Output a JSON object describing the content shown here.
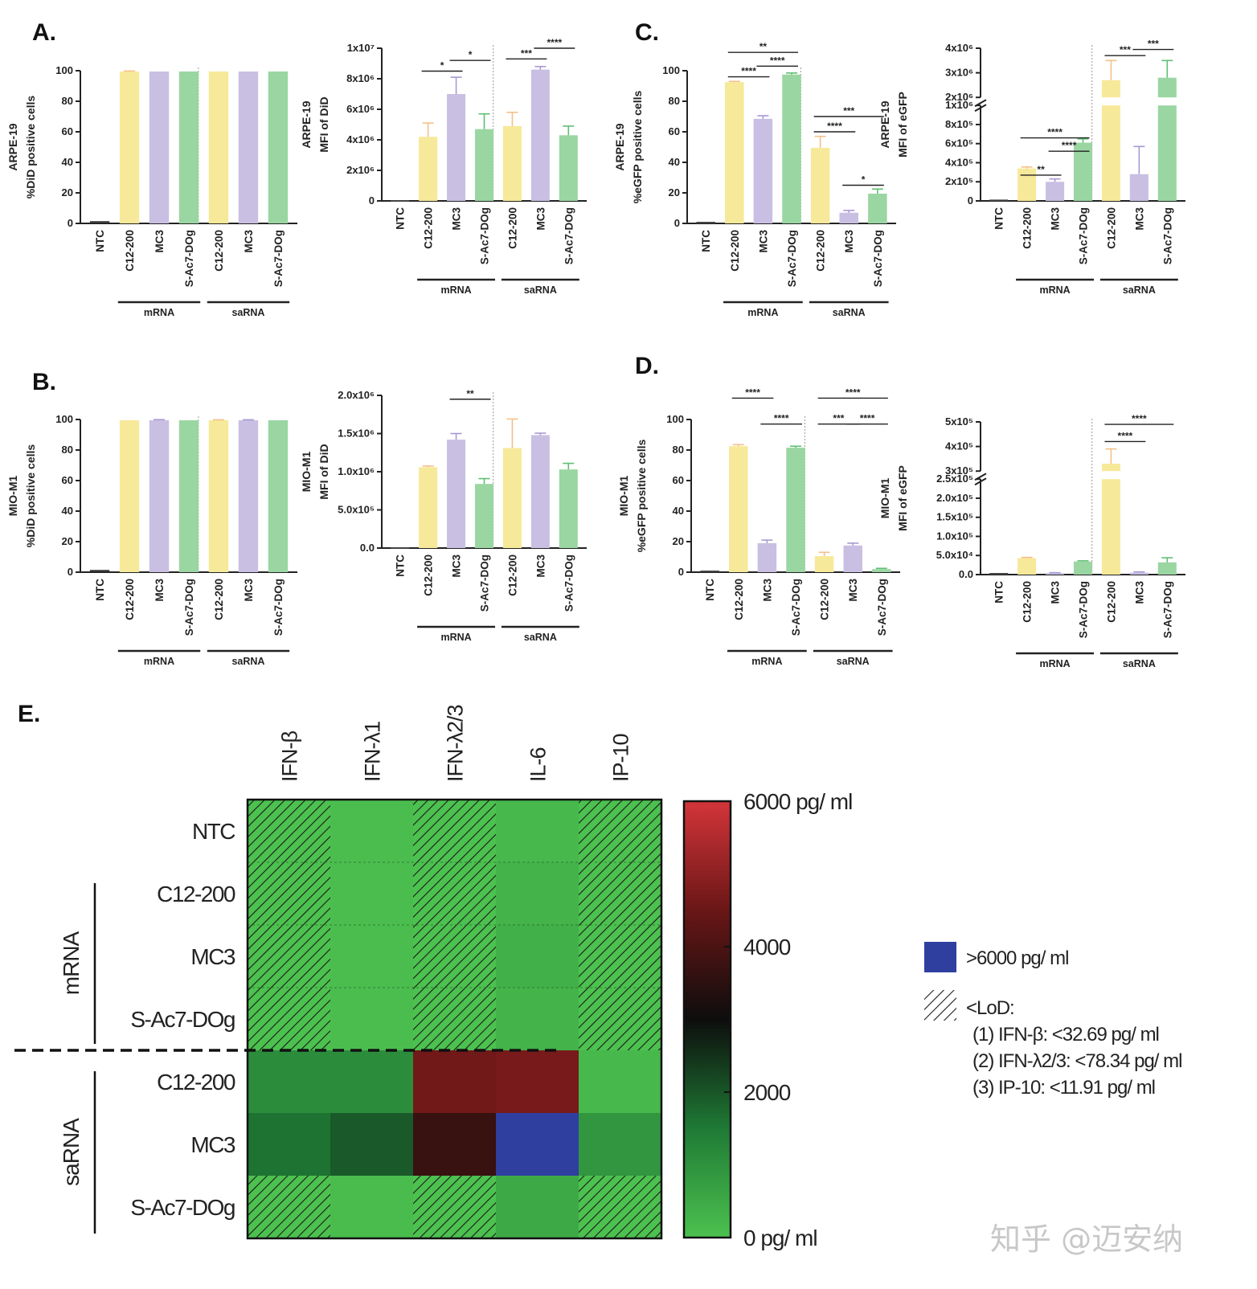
{
  "colors": {
    "C12-200": "#f7e99a",
    "MC3": "#c9bfe3",
    "S-Ac7-DOg": "#9ad6a2",
    "NTC": "#444444",
    "err_C12-200": "#f5c08a",
    "err_MC3": "#a899d4",
    "err_S-Ac7-DOg": "#5fbf72",
    "above_range": "#2f3fa0"
  },
  "watermark": "知乎 @迈安纳",
  "chart_data": [
    {
      "id": "A1",
      "letter": "A.",
      "type": "bar",
      "ylabel_lines": [
        "ARPE-19",
        "%DiD positive cells"
      ],
      "ylim": [
        0,
        100
      ],
      "yticks": [
        0,
        20,
        40,
        60,
        80,
        100
      ],
      "ytick_labels": [
        "0",
        "20",
        "40",
        "60",
        "80",
        "100"
      ],
      "categories": [
        "NTC",
        "C12-200",
        "MC3",
        "S-Ac7-DOg",
        "C12-200",
        "MC3",
        "S-Ac7-DOg"
      ],
      "groups": [
        {
          "label": "mRNA",
          "from": 1,
          "to": 3
        },
        {
          "label": "saRNA",
          "from": 4,
          "to": 6
        }
      ],
      "values": [
        1,
        99.5,
        99.5,
        99.5,
        99.5,
        99.5,
        99.5
      ],
      "errors": [
        0,
        0.3,
        0,
        0,
        0,
        0,
        0
      ],
      "sig": []
    },
    {
      "id": "A2",
      "type": "bar",
      "ylabel_lines": [
        "ARPE-19",
        "MFI of DiD"
      ],
      "ylim": [
        0,
        10000000
      ],
      "yticks": [
        0,
        2000000,
        4000000,
        6000000,
        8000000,
        10000000
      ],
      "ytick_labels": [
        "0",
        "2x10⁶",
        "4x10⁶",
        "6x10⁶",
        "8x10⁶",
        "1x10⁷"
      ],
      "categories": [
        "NTC",
        "C12-200",
        "MC3",
        "S-Ac7-DOg",
        "C12-200",
        "MC3",
        "S-Ac7-DOg"
      ],
      "groups": [
        {
          "label": "mRNA",
          "from": 1,
          "to": 3
        },
        {
          "label": "saRNA",
          "from": 4,
          "to": 6
        }
      ],
      "values": [
        0,
        4200000,
        7000000,
        4700000,
        4900000,
        8600000,
        4300000
      ],
      "errors": [
        0,
        900000,
        1100000,
        1000000,
        900000,
        200000,
        600000
      ],
      "sig": [
        {
          "a": 1,
          "b": 2,
          "label": "*",
          "y": 8500000
        },
        {
          "a": 2,
          "b": 3,
          "label": "*",
          "y": 9200000
        },
        {
          "a": 4,
          "b": 5,
          "label": "***",
          "y": 9300000
        },
        {
          "a": 5,
          "b": 6,
          "label": "****",
          "y": 10000000
        }
      ]
    },
    {
      "id": "B1",
      "letter": "B.",
      "type": "bar",
      "ylabel_lines": [
        "MIO-M1",
        "%DiD positive cells"
      ],
      "ylim": [
        0,
        100
      ],
      "yticks": [
        0,
        20,
        40,
        60,
        80,
        100
      ],
      "ytick_labels": [
        "0",
        "20",
        "40",
        "60",
        "80",
        "100"
      ],
      "categories": [
        "NTC",
        "C12-200",
        "MC3",
        "S-Ac7-DOg",
        "C12-200",
        "MC3",
        "S-Ac7-DOg"
      ],
      "groups": [
        {
          "label": "mRNA",
          "from": 1,
          "to": 3
        },
        {
          "label": "saRNA",
          "from": 4,
          "to": 6
        }
      ],
      "values": [
        1,
        99.5,
        99.5,
        99.5,
        99.5,
        99.5,
        99.5
      ],
      "errors": [
        0,
        0,
        0.4,
        0,
        0.3,
        0.3,
        0
      ],
      "sig": []
    },
    {
      "id": "B2",
      "type": "bar",
      "ylabel_lines": [
        "MIO-M1",
        "MFI of DiD"
      ],
      "ylim": [
        0,
        2000000
      ],
      "yticks": [
        0,
        500000,
        1000000,
        1500000,
        2000000
      ],
      "ytick_labels": [
        "0.0",
        "5.0x10⁵",
        "1.0x10⁶",
        "1.5x10⁶",
        "2.0x10⁶"
      ],
      "categories": [
        "NTC",
        "C12-200",
        "MC3",
        "S-Ac7-DOg",
        "C12-200",
        "MC3",
        "S-Ac7-DOg"
      ],
      "groups": [
        {
          "label": "mRNA",
          "from": 1,
          "to": 3
        },
        {
          "label": "saRNA",
          "from": 4,
          "to": 6
        }
      ],
      "values": [
        0,
        1060000,
        1420000,
        840000,
        1310000,
        1480000,
        1030000
      ],
      "errors": [
        0,
        15000,
        80000,
        70000,
        380000,
        25000,
        80000
      ],
      "sig": [
        {
          "a": 2,
          "b": 3,
          "label": "**",
          "y": 1950000
        }
      ]
    },
    {
      "id": "C1",
      "letter": "C.",
      "type": "bar",
      "ylabel_lines": [
        "ARPE-19",
        "%eGFP positive cells"
      ],
      "ylim": [
        0,
        100
      ],
      "yticks": [
        0,
        20,
        40,
        60,
        80,
        100
      ],
      "ytick_labels": [
        "0",
        "20",
        "40",
        "60",
        "80",
        "100"
      ],
      "categories": [
        "NTC",
        "C12-200",
        "MC3",
        "S-Ac7-DOg",
        "C12-200",
        "MC3",
        "S-Ac7-DOg"
      ],
      "groups": [
        {
          "label": "mRNA",
          "from": 1,
          "to": 3
        },
        {
          "label": "saRNA",
          "from": 4,
          "to": 6
        }
      ],
      "values": [
        0.5,
        92.5,
        68.5,
        97.5,
        49.5,
        7,
        19.5
      ],
      "errors": [
        0,
        0.5,
        2,
        1,
        7.5,
        1.5,
        3
      ],
      "sig": [
        {
          "a": 1,
          "b": 2,
          "label": "****",
          "y": 96
        },
        {
          "a": 2,
          "b": 3,
          "label": "****",
          "y": 103
        },
        {
          "a": 1,
          "b": 3,
          "label": "**",
          "y": 112
        },
        {
          "a": 4,
          "b": 5,
          "label": "****",
          "y": 60
        },
        {
          "a": 5,
          "b": 6,
          "label": "*",
          "y": 25
        },
        {
          "a": 4,
          "b": 6,
          "label": "***",
          "y": 70
        }
      ]
    },
    {
      "id": "C2",
      "type": "bar-broken",
      "ylabel_lines": [
        "ARPE-19",
        "MFI of eGFP"
      ],
      "segments": [
        {
          "ylim": [
            0,
            1000000
          ],
          "yticks": [
            0,
            200000,
            400000,
            600000,
            800000,
            1000000
          ],
          "ytick_labels": [
            "0",
            "2x10⁵",
            "4x10⁵",
            "6x10⁵",
            "8x10⁵",
            "1x10⁶"
          ],
          "frac": 0.66
        },
        {
          "ylim": [
            2000000,
            4000000
          ],
          "yticks": [
            2000000,
            3000000,
            4000000
          ],
          "ytick_labels": [
            "2x10⁶",
            "3x10⁶",
            "4x10⁶"
          ],
          "frac": 0.34
        }
      ],
      "categories": [
        "NTC",
        "C12-200",
        "MC3",
        "S-Ac7-DOg",
        "C12-200",
        "MC3",
        "S-Ac7-DOg"
      ],
      "groups": [
        {
          "label": "mRNA",
          "from": 1,
          "to": 3
        },
        {
          "label": "saRNA",
          "from": 4,
          "to": 6
        }
      ],
      "values": [
        5000,
        340000,
        200000,
        610000,
        2700000,
        280000,
        2800000
      ],
      "errors": [
        0,
        15000,
        30000,
        40000,
        800000,
        290000,
        700000
      ],
      "sig": [
        {
          "a": 1,
          "b": 2,
          "label": "**",
          "y": 270000
        },
        {
          "a": 2,
          "b": 3,
          "label": "****",
          "y": 520000
        },
        {
          "a": 1,
          "b": 3,
          "label": "****",
          "y": 660000
        },
        {
          "a": 4,
          "b": 5,
          "label": "***",
          "y": 3700000
        },
        {
          "a": 5,
          "b": 6,
          "label": "***",
          "y": 3950000
        }
      ]
    },
    {
      "id": "D1",
      "letter": "D.",
      "type": "bar",
      "ylabel_lines": [
        "MIO-M1",
        "%eGFP positive cells"
      ],
      "ylim": [
        0,
        100
      ],
      "yticks": [
        0,
        20,
        40,
        60,
        80,
        100
      ],
      "ytick_labels": [
        "0",
        "20",
        "40",
        "60",
        "80",
        "100"
      ],
      "categories": [
        "NTC",
        "C12-200",
        "MC3",
        "S-Ac7-DOg",
        "C12-200",
        "MC3",
        "S-Ac7-DOg"
      ],
      "groups": [
        {
          "label": "mRNA",
          "from": 1,
          "to": 3
        },
        {
          "label": "saRNA",
          "from": 4,
          "to": 6
        }
      ],
      "values": [
        0.5,
        82.5,
        19,
        81.5,
        10.5,
        17.5,
        2
      ],
      "errors": [
        0,
        1,
        2,
        1,
        2.5,
        1.5,
        0.5
      ],
      "sig": [
        {
          "a": 1,
          "b": 2,
          "label": "****",
          "y": 114
        },
        {
          "a": 2,
          "b": 3,
          "label": "****",
          "y": 97
        },
        {
          "a": 4,
          "b": 5,
          "label": "***",
          "y": 97
        },
        {
          "a": 5,
          "b": 6,
          "label": "****",
          "y": 97
        },
        {
          "a": 4,
          "b": 6,
          "label": "****",
          "y": 114
        }
      ]
    },
    {
      "id": "D2",
      "type": "bar-broken",
      "ylabel_lines": [
        "MIO-M1",
        "MFI of eGFP"
      ],
      "segments": [
        {
          "ylim": [
            0,
            250000
          ],
          "yticks": [
            0,
            50000,
            100000,
            150000,
            200000,
            250000
          ],
          "ytick_labels": [
            "0.0",
            "5.0x10⁴",
            "1.0x10⁵",
            "1.5x10⁵",
            "2.0x10⁵",
            "2.5x10⁵"
          ],
          "frac": 0.66
        },
        {
          "ylim": [
            300000,
            500000
          ],
          "yticks": [
            300000,
            400000,
            500000
          ],
          "ytick_labels": [
            "3x10⁵",
            "4x10⁵",
            "5x10⁵"
          ],
          "frac": 0.34
        }
      ],
      "categories": [
        "NTC",
        "C12-200",
        "MC3",
        "S-Ac7-DOg",
        "C12-200",
        "MC3",
        "S-Ac7-DOg"
      ],
      "groups": [
        {
          "label": "mRNA",
          "from": 1,
          "to": 3
        },
        {
          "label": "saRNA",
          "from": 4,
          "to": 6
        }
      ],
      "values": [
        2000,
        43000,
        4000,
        34000,
        330000,
        5000,
        32000
      ],
      "errors": [
        0,
        2000,
        1000,
        2000,
        60000,
        2000,
        12000
      ],
      "sig": [
        {
          "a": 4,
          "b": 5,
          "label": "****",
          "y": 420000
        },
        {
          "a": 4,
          "b": 6,
          "label": "****",
          "y": 490000
        }
      ]
    },
    {
      "id": "E",
      "letter": "E.",
      "type": "heatmap",
      "columns": [
        "IFN-β",
        "IFN-λ1",
        "IFN-λ2/3",
        "IL-6",
        "IP-10"
      ],
      "rows": [
        "NTC",
        "C12-200",
        "MC3",
        "S-Ac7-DOg",
        "C12-200",
        "MC3",
        "S-Ac7-DOg"
      ],
      "row_groups": [
        {
          "label": "mRNA",
          "from": 1,
          "to": 3
        },
        {
          "label": "saRNA",
          "from": 4,
          "to": 6
        }
      ],
      "values_pg_ml": [
        [
          0,
          80,
          0,
          200,
          0
        ],
        [
          0,
          80,
          0,
          300,
          0
        ],
        [
          0,
          80,
          0,
          350,
          0
        ],
        [
          0,
          80,
          0,
          300,
          0
        ],
        [
          1100,
          1100,
          4600,
          4700,
          200
        ],
        [
          1600,
          1950,
          3700,
          7000,
          900
        ],
        [
          0,
          100,
          0,
          500,
          0
        ]
      ],
      "below_lod": [
        [
          true,
          false,
          true,
          false,
          true
        ],
        [
          true,
          false,
          true,
          false,
          true
        ],
        [
          true,
          false,
          true,
          false,
          true
        ],
        [
          true,
          false,
          true,
          false,
          true
        ],
        [
          false,
          false,
          false,
          false,
          false
        ],
        [
          false,
          false,
          false,
          false,
          false
        ],
        [
          true,
          false,
          true,
          false,
          true
        ]
      ],
      "above_range": [
        [
          false,
          false,
          false,
          false,
          false
        ],
        [
          false,
          false,
          false,
          false,
          false
        ],
        [
          false,
          false,
          false,
          false,
          false
        ],
        [
          false,
          false,
          false,
          false,
          false
        ],
        [
          false,
          false,
          false,
          false,
          false
        ],
        [
          false,
          false,
          false,
          true,
          false
        ],
        [
          false,
          false,
          false,
          false,
          false
        ]
      ],
      "colorbar": {
        "min": 0,
        "max": 6000,
        "labels": [
          {
            "value": 6000,
            "text": "6000 pg/ ml"
          },
          {
            "value": 4000,
            "text": "4000"
          },
          {
            "value": 2000,
            "text": "2000"
          },
          {
            "value": 0,
            "text": "0 pg/ ml"
          }
        ],
        "stops": [
          "#4cc14f",
          "#1f7a35",
          "#0d0d0d",
          "#6a1616",
          "#d3353a"
        ]
      },
      "legend": {
        "above": ">6000 pg/ ml",
        "lod_title": "<LoD:",
        "lod_items": [
          "(1) IFN-β: <32.69 pg/ ml",
          "(2) IFN-λ2/3: <78.34 pg/ ml",
          "(3) IP-10: <11.91 pg/ ml"
        ]
      }
    }
  ]
}
